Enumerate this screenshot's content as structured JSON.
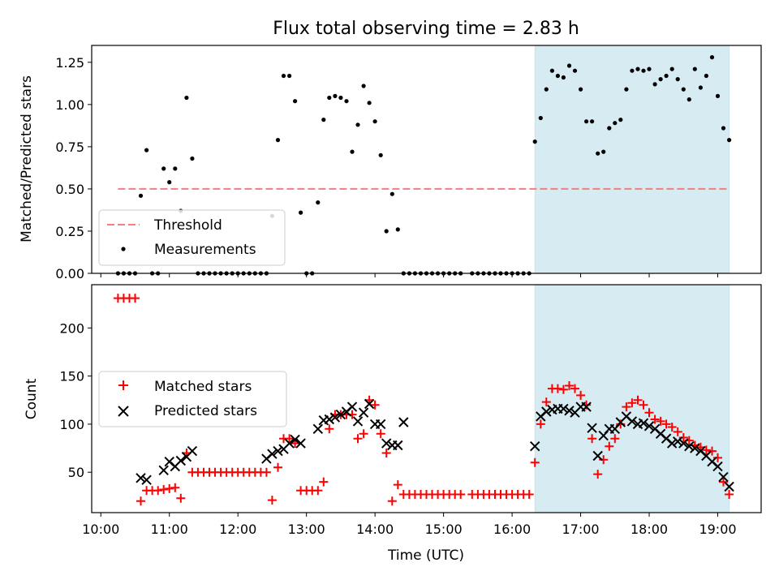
{
  "chart_data": [
    {
      "type": "scatter",
      "title": "Flux total observing time = 2.83 h",
      "xlabel": "",
      "ylabel": "Matched/Predicted stars",
      "xlim": [
        "09:52",
        "19:38"
      ],
      "ylim": [
        0,
        1.35
      ],
      "yticks": [
        0.0,
        0.25,
        0.5,
        0.75,
        1.0,
        1.25
      ],
      "ytick_labels": [
        "0.00",
        "0.25",
        "0.50",
        "0.75",
        "1.00",
        "1.25"
      ],
      "highlight_span": {
        "x": [
          "16:20",
          "19:10"
        ],
        "color": "#add8e6"
      },
      "threshold": {
        "name": "Threshold",
        "y": 0.5,
        "x": [
          "10:15",
          "19:10"
        ],
        "color": "#f08080",
        "style": "dashed"
      },
      "legend": {
        "position": "lower-left",
        "entries": [
          "Threshold",
          "Measurements"
        ]
      },
      "series": [
        {
          "name": "Measurements",
          "color": "#000000",
          "marker": "dot",
          "x": [
            "10:15",
            "10:20",
            "10:25",
            "10:30",
            "10:35",
            "10:40",
            "10:45",
            "10:50",
            "10:55",
            "11:00",
            "11:05",
            "11:10",
            "11:15",
            "11:20",
            "11:25",
            "11:30",
            "11:35",
            "11:40",
            "11:45",
            "11:50",
            "11:55",
            "12:00",
            "12:05",
            "12:10",
            "12:15",
            "12:20",
            "12:25",
            "12:30",
            "12:35",
            "12:40",
            "12:45",
            "12:50",
            "12:55",
            "13:00",
            "13:05",
            "13:10",
            "13:15",
            "13:20",
            "13:25",
            "13:30",
            "13:35",
            "13:40",
            "13:45",
            "13:50",
            "13:55",
            "14:00",
            "14:05",
            "14:10",
            "14:15",
            "14:20",
            "14:25",
            "14:30",
            "14:35",
            "14:40",
            "14:45",
            "14:50",
            "14:55",
            "15:00",
            "15:05",
            "15:10",
            "15:15",
            "15:25",
            "15:30",
            "15:35",
            "15:40",
            "15:45",
            "15:50",
            "15:55",
            "16:00",
            "16:05",
            "16:10",
            "16:15",
            "16:20",
            "16:25",
            "16:30",
            "16:35",
            "16:40",
            "16:45",
            "16:50",
            "16:55",
            "17:00",
            "17:05",
            "17:10",
            "17:15",
            "17:20",
            "17:25",
            "17:30",
            "17:35",
            "17:40",
            "17:45",
            "17:50",
            "17:55",
            "18:00",
            "18:05",
            "18:10",
            "18:15",
            "18:20",
            "18:25",
            "18:30",
            "18:35",
            "18:40",
            "18:45",
            "18:50",
            "18:55",
            "19:00",
            "19:05",
            "19:10"
          ],
          "y": [
            0,
            0,
            0,
            0,
            0.46,
            0.73,
            0,
            0,
            0.62,
            0.54,
            0.62,
            0.37,
            1.04,
            0.68,
            0,
            0,
            0,
            0,
            0,
            0,
            0,
            0,
            0,
            0,
            0,
            0,
            0,
            0.34,
            0.79,
            1.17,
            1.17,
            1.02,
            0.36,
            0,
            0,
            0.42,
            0.91,
            1.04,
            1.05,
            1.04,
            1.02,
            0.72,
            0.88,
            1.11,
            1.01,
            0.9,
            0.7,
            0.25,
            0.47,
            0.26,
            0,
            0,
            0,
            0,
            0,
            0,
            0,
            0,
            0,
            0,
            0,
            0,
            0,
            0,
            0,
            0,
            0,
            0,
            0,
            0,
            0,
            0,
            0.78,
            0.92,
            1.09,
            1.2,
            1.17,
            1.16,
            1.23,
            1.2,
            1.09,
            0.9,
            0.9,
            0.71,
            0.72,
            0.86,
            0.89,
            0.91,
            1.09,
            1.2,
            1.21,
            1.2,
            1.21,
            1.12,
            1.15,
            1.17,
            1.21,
            1.15,
            1.09,
            1.03,
            1.21,
            1.1,
            1.17,
            1.28,
            1.05,
            0.86,
            0.79
          ]
        }
      ]
    },
    {
      "type": "scatter",
      "title": "",
      "xlabel": "Time (UTC)",
      "ylabel": "Count",
      "xlim": [
        "09:52",
        "19:38"
      ],
      "ylim": [
        8,
        245
      ],
      "yticks": [
        50,
        100,
        150,
        200
      ],
      "ytick_labels": [
        "50",
        "100",
        "150",
        "200"
      ],
      "xticks": [
        "10:00",
        "11:00",
        "12:00",
        "13:00",
        "14:00",
        "15:00",
        "16:00",
        "17:00",
        "18:00",
        "19:00"
      ],
      "xtick_labels": [
        "10:00",
        "11:00",
        "12:00",
        "13:00",
        "14:00",
        "15:00",
        "16:00",
        "17:00",
        "18:00",
        "19:00"
      ],
      "highlight_span": {
        "x": [
          "16:20",
          "19:10"
        ],
        "color": "#add8e6"
      },
      "legend": {
        "position": "center-left",
        "entries": [
          "Matched stars",
          "Predicted stars"
        ]
      },
      "series": [
        {
          "name": "Matched stars",
          "color": "#ff0000",
          "marker": "plus",
          "x": [
            "10:15",
            "10:20",
            "10:25",
            "10:30",
            "10:35",
            "10:40",
            "10:45",
            "10:50",
            "10:55",
            "11:00",
            "11:05",
            "11:10",
            "11:15",
            "11:20",
            "11:25",
            "11:30",
            "11:35",
            "11:40",
            "11:45",
            "11:50",
            "11:55",
            "12:00",
            "12:05",
            "12:10",
            "12:15",
            "12:20",
            "12:25",
            "12:30",
            "12:35",
            "12:40",
            "12:45",
            "12:50",
            "12:55",
            "13:00",
            "13:05",
            "13:10",
            "13:15",
            "13:20",
            "13:25",
            "13:30",
            "13:35",
            "13:40",
            "13:45",
            "13:50",
            "13:55",
            "14:00",
            "14:05",
            "14:10",
            "14:15",
            "14:20",
            "14:25",
            "14:30",
            "14:35",
            "14:40",
            "14:45",
            "14:50",
            "14:55",
            "15:00",
            "15:05",
            "15:10",
            "15:15",
            "15:25",
            "15:30",
            "15:35",
            "15:40",
            "15:45",
            "15:50",
            "15:55",
            "16:00",
            "16:05",
            "16:10",
            "16:15",
            "16:20",
            "16:25",
            "16:30",
            "16:35",
            "16:40",
            "16:45",
            "16:50",
            "16:55",
            "17:00",
            "17:05",
            "17:10",
            "17:15",
            "17:20",
            "17:25",
            "17:30",
            "17:35",
            "17:40",
            "17:45",
            "17:50",
            "17:55",
            "18:00",
            "18:05",
            "18:10",
            "18:15",
            "18:20",
            "18:25",
            "18:30",
            "18:35",
            "18:40",
            "18:45",
            "18:50",
            "18:55",
            "19:00",
            "19:05",
            "19:10"
          ],
          "y": [
            231,
            231,
            231,
            231,
            20,
            31,
            31,
            31,
            32,
            33,
            34,
            23,
            70,
            50,
            50,
            50,
            50,
            50,
            50,
            50,
            50,
            50,
            50,
            50,
            50,
            50,
            50,
            21,
            55,
            85,
            85,
            80,
            31,
            31,
            31,
            31,
            40,
            95,
            110,
            110,
            110,
            110,
            85,
            90,
            125,
            120,
            90,
            70,
            20,
            37,
            27,
            27,
            27,
            27,
            27,
            27,
            27,
            27,
            27,
            27,
            27,
            27,
            27,
            27,
            27,
            27,
            27,
            27,
            27,
            27,
            27,
            27,
            60,
            100,
            123,
            137,
            137,
            136,
            140,
            137,
            130,
            120,
            85,
            48,
            63,
            77,
            85,
            100,
            118,
            122,
            125,
            120,
            112,
            105,
            103,
            100,
            97,
            92,
            86,
            83,
            78,
            76,
            73,
            72,
            65,
            40,
            27
          ]
        },
        {
          "name": "Predicted stars",
          "color": "#000000",
          "marker": "x",
          "x": [
            "10:35",
            "10:40",
            "10:55",
            "11:00",
            "11:05",
            "11:10",
            "11:15",
            "11:20",
            "12:25",
            "12:30",
            "12:35",
            "12:40",
            "12:45",
            "12:50",
            "12:55",
            "13:10",
            "13:15",
            "13:20",
            "13:25",
            "13:30",
            "13:35",
            "13:40",
            "13:45",
            "13:50",
            "13:55",
            "14:00",
            "14:05",
            "14:10",
            "14:15",
            "14:20",
            "14:25",
            "16:20",
            "16:25",
            "16:30",
            "16:35",
            "16:40",
            "16:45",
            "16:50",
            "16:55",
            "17:00",
            "17:05",
            "17:10",
            "17:15",
            "17:20",
            "17:25",
            "17:30",
            "17:35",
            "17:40",
            "17:45",
            "17:50",
            "17:55",
            "18:00",
            "18:05",
            "18:10",
            "18:15",
            "18:20",
            "18:25",
            "18:30",
            "18:35",
            "18:40",
            "18:45",
            "18:50",
            "18:55",
            "19:00",
            "19:05",
            "19:10"
          ],
          "y": [
            44,
            42,
            52,
            61,
            56,
            62,
            66,
            72,
            64,
            69,
            72,
            74,
            80,
            84,
            80,
            95,
            104,
            105,
            107,
            110,
            113,
            118,
            103,
            112,
            121,
            100,
            100,
            80,
            78,
            78,
            102,
            77,
            108,
            113,
            115,
            116,
            116,
            114,
            112,
            118,
            118,
            96,
            67,
            88,
            95,
            95,
            102,
            108,
            103,
            100,
            101,
            98,
            95,
            90,
            85,
            80,
            82,
            80,
            77,
            75,
            72,
            67,
            61,
            56,
            45,
            35
          ]
        }
      ]
    }
  ]
}
